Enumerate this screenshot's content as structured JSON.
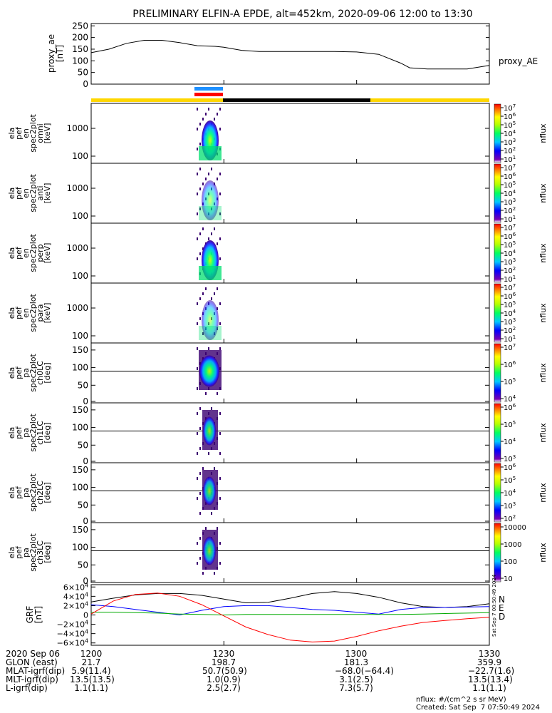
{
  "title": "PRELIMINARY ELFIN-A EPDE, alt=452km, 2020-09-06 12:00 to 13:30",
  "chart_data": [
    {
      "type": "line",
      "panel": "proxy_ae",
      "ylabel": [
        "proxy_ae",
        "[nT]"
      ],
      "legend": "proxy_AE",
      "yticks": [
        "250",
        "200",
        "150",
        "100",
        "50",
        "0"
      ],
      "ylim": [
        0,
        260
      ],
      "x_minutes": [
        0,
        4,
        8,
        12,
        16,
        20,
        24,
        28,
        30,
        34,
        38,
        42,
        46,
        50,
        55,
        60,
        65,
        70,
        72,
        76,
        80,
        85,
        90
      ],
      "values": [
        135,
        150,
        175,
        188,
        188,
        178,
        165,
        162,
        158,
        145,
        140,
        140,
        140,
        140,
        140,
        138,
        128,
        90,
        70,
        65,
        65,
        65,
        80
      ]
    },
    {
      "type": "heatmap",
      "panels": [
        {
          "name": "ela_pef_en_spec2plot_omni",
          "ylabel": [
            "ela",
            "pef",
            "en",
            "spec2plot",
            "omni",
            "[keV]"
          ],
          "yticks": [
            "1000",
            "100"
          ],
          "scale": "log",
          "zlabel": "nflux",
          "zticks": [
            "10^7",
            "10^6",
            "10^5",
            "10^4",
            "10^3",
            "10^2",
            "10^1"
          ]
        },
        {
          "name": "ela_pef_en_spec2plot_anti",
          "ylabel": [
            "ela",
            "pef",
            "en",
            "spec2plot",
            "anti",
            "[keV]"
          ],
          "yticks": [
            "1000",
            "100"
          ],
          "scale": "log",
          "zlabel": "nflux",
          "zticks": [
            "10^7",
            "10^6",
            "10^5",
            "10^4",
            "10^3",
            "10^2",
            "10^1"
          ]
        },
        {
          "name": "ela_pef_en_spec2plot_perp",
          "ylabel": [
            "ela",
            "pef",
            "en",
            "spec2plot",
            "perp",
            "[keV]"
          ],
          "yticks": [
            "1000",
            "100"
          ],
          "scale": "log",
          "zlabel": "nflux",
          "zticks": [
            "10^7",
            "10^6",
            "10^5",
            "10^4",
            "10^3",
            "10^2",
            "10^1"
          ]
        },
        {
          "name": "ela_pef_en_spec2plot_para",
          "ylabel": [
            "ela",
            "pef",
            "en",
            "spec2plot",
            "para",
            "[keV]"
          ],
          "yticks": [
            "1000",
            "100"
          ],
          "scale": "log",
          "zlabel": "nflux",
          "zticks": [
            "10^7",
            "10^6",
            "10^5",
            "10^4",
            "10^3",
            "10^2",
            "10^1"
          ]
        },
        {
          "name": "ela_pef_pa_spec2plot_ch0LC",
          "ylabel": [
            "ela",
            "pef",
            "pa",
            "spec2plot",
            "ch0LC",
            "[deg]"
          ],
          "yticks": [
            "150",
            "100",
            "50",
            "0"
          ],
          "scale": "linear",
          "zlabel": "nflux",
          "zticks": [
            "10^7",
            "10^6",
            "10^5",
            "10^4"
          ]
        },
        {
          "name": "ela_pef_pa_spec2plot_ch1LC",
          "ylabel": [
            "ela",
            "pef",
            "pa",
            "spec2plot",
            "ch1LC",
            "[deg]"
          ],
          "yticks": [
            "150",
            "100",
            "50",
            "0"
          ],
          "scale": "linear",
          "zlabel": "nflux",
          "zticks": [
            "10^6",
            "10^5",
            "10^4",
            "10^3"
          ]
        },
        {
          "name": "ela_pef_pa_spec2plot_ch2LC",
          "ylabel": [
            "ela",
            "pef",
            "pa",
            "spec2plot",
            "ch2LC",
            "[deg]"
          ],
          "yticks": [
            "150",
            "100",
            "50",
            "0"
          ],
          "scale": "linear",
          "zlabel": "nflux",
          "zticks": [
            "10^6",
            "10^5",
            "10^4",
            "10^3",
            "10^2"
          ]
        },
        {
          "name": "ela_pef_pa_spec2plot_ch3LC",
          "ylabel": [
            "ela",
            "pef",
            "pa",
            "spec2plot",
            "ch3LC",
            "[deg]"
          ],
          "yticks": [
            "150",
            "100",
            "50",
            "0"
          ],
          "scale": "linear",
          "zlabel": "nflux",
          "zticks": [
            "10000",
            "1000",
            "100",
            "10"
          ]
        }
      ]
    },
    {
      "type": "line",
      "panel": "GRF",
      "ylabel": [
        "GRF",
        "[nT]"
      ],
      "yticks": [
        "6×10^4",
        "4×10^4",
        "2×10^4",
        "0",
        "−2×10^4",
        "−4×10^4",
        "−6×10^4"
      ],
      "ylim": [
        -65000,
        65000
      ],
      "legend": [
        "N",
        "E",
        "D"
      ],
      "legend_colors": [
        "#0000ff",
        "#00bb00",
        "#ff0000"
      ],
      "x_minutes": [
        0,
        5,
        10,
        15,
        20,
        25,
        30,
        35,
        40,
        45,
        50,
        55,
        60,
        65,
        70,
        75,
        80,
        85,
        90
      ],
      "series": [
        {
          "color": "#000000",
          "values": [
            28000,
            36000,
            43000,
            46000,
            46000,
            42000,
            34000,
            26000,
            27000,
            36000,
            46000,
            50000,
            46000,
            38000,
            26000,
            18000,
            16000,
            18000,
            24000
          ]
        },
        {
          "color": "#0000ff",
          "values": [
            22000,
            18000,
            12000,
            6000,
            0,
            10000,
            18000,
            20000,
            20000,
            16000,
            12000,
            10000,
            6000,
            2000,
            12000,
            16000,
            16000,
            17000,
            18000
          ]
        },
        {
          "color": "#00aa00",
          "values": [
            6000,
            6000,
            5000,
            4000,
            2000,
            1000,
            0,
            1000,
            1000,
            1000,
            1000,
            1000,
            1000,
            1000,
            1000,
            2000,
            3000,
            4000,
            5000
          ]
        },
        {
          "color": "#ff0000",
          "values": [
            2000,
            30000,
            44000,
            47000,
            40000,
            22000,
            -2000,
            -26000,
            -42000,
            -54000,
            -58000,
            -56000,
            -46000,
            -34000,
            -24000,
            -16000,
            -12000,
            -8000,
            -5000
          ]
        }
      ]
    }
  ],
  "ticks_x": [
    "1200",
    "1230",
    "1300",
    "1330"
  ],
  "footer": {
    "labels": [
      "2020 Sep 06",
      "GLON (east)",
      "MLAT-igrf(dip)",
      "MLT-igrf(dip)",
      "L-igrf(dip)"
    ],
    "rows": [
      [
        "1200",
        "1230",
        "1300",
        "1330"
      ],
      [
        "21.7",
        "198.7",
        "181.3",
        "359.9"
      ],
      [
        "5.9(11.4)",
        "50.7(50.9)",
        "−68.0(−64.4)",
        "−22.7(1.6)"
      ],
      [
        "13.5(13.5)",
        "1.0(0.9)",
        "3.1(2.5)",
        "13.5(13.4)"
      ],
      [
        "1.1(1.1)",
        "2.5(2.7)",
        "7.3(5.7)",
        "1.1(1.1)"
      ]
    ],
    "units": "nflux: #/(cm^2 s sr MeV)",
    "created": "Created: Sat Sep  7 07:50:49 2024",
    "side_stamp": "Sat Sep  7 00:50:49 2024"
  },
  "bar_colors": {
    "blue": "#1e90ff",
    "red": "#ff0000",
    "yellow": "#ffd700",
    "black": "#000000"
  }
}
